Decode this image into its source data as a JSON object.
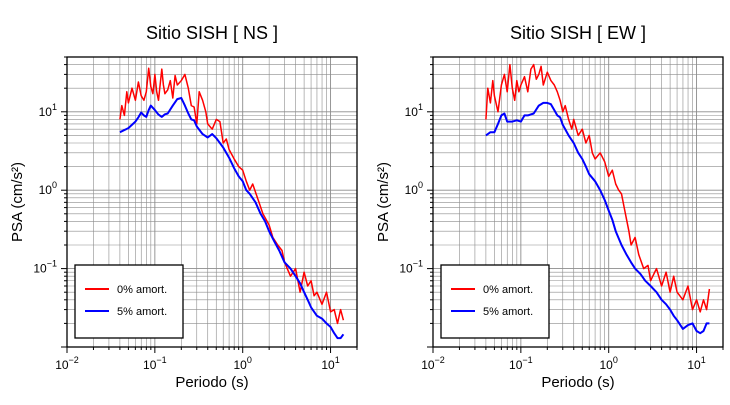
{
  "chart_data": [
    {
      "type": "line",
      "title": "Sitio SISH [ NS ]",
      "xlabel": "Periodo (s)",
      "ylabel": "PSA (cm/s²)",
      "xscale": "log",
      "yscale": "log",
      "xlim": [
        0.01,
        20
      ],
      "ylim": [
        0.01,
        50
      ],
      "xticks": [
        0.01,
        0.1,
        1,
        10
      ],
      "xtick_labels": [
        {
          "base": "10",
          "exp": "−2"
        },
        {
          "base": "10",
          "exp": "−1"
        },
        {
          "base": "10",
          "exp": "0"
        },
        {
          "base": "10",
          "exp": "1"
        }
      ],
      "yticks": [
        0.1,
        1,
        10
      ],
      "ytick_labels": [
        {
          "base": "10",
          "exp": "−1"
        },
        {
          "base": "10",
          "exp": "0"
        },
        {
          "base": "10",
          "exp": "1"
        }
      ],
      "grid": true,
      "legend_position": "bottom-left",
      "series": [
        {
          "name": "0% amort.",
          "color": "#ff0000",
          "points": [
            [
              0.04,
              8.0
            ],
            [
              0.042,
              12.0
            ],
            [
              0.045,
              9.0
            ],
            [
              0.048,
              18.0
            ],
            [
              0.05,
              13.0
            ],
            [
              0.055,
              20.0
            ],
            [
              0.06,
              14.0
            ],
            [
              0.065,
              24.0
            ],
            [
              0.07,
              16.0
            ],
            [
              0.075,
              14.0
            ],
            [
              0.08,
              18.0
            ],
            [
              0.085,
              36.0
            ],
            [
              0.09,
              21.0
            ],
            [
              0.095,
              17.0
            ],
            [
              0.1,
              30.0
            ],
            [
              0.105,
              18.0
            ],
            [
              0.11,
              14.0
            ],
            [
              0.12,
              35.0
            ],
            [
              0.125,
              22.0
            ],
            [
              0.13,
              17.0
            ],
            [
              0.14,
              19.0
            ],
            [
              0.15,
              25.0
            ],
            [
              0.16,
              15.0
            ],
            [
              0.17,
              29.0
            ],
            [
              0.18,
              22.0
            ],
            [
              0.2,
              25.0
            ],
            [
              0.22,
              30.0
            ],
            [
              0.24,
              20.0
            ],
            [
              0.26,
              12.0
            ],
            [
              0.28,
              11.5
            ],
            [
              0.3,
              7.0
            ],
            [
              0.32,
              18.0
            ],
            [
              0.35,
              14.0
            ],
            [
              0.38,
              10.0
            ],
            [
              0.4,
              7.0
            ],
            [
              0.45,
              6.0
            ],
            [
              0.5,
              8.0
            ],
            [
              0.55,
              7.5
            ],
            [
              0.6,
              4.0
            ],
            [
              0.65,
              4.5
            ],
            [
              0.7,
              3.3
            ],
            [
              0.8,
              2.5
            ],
            [
              0.9,
              2.0
            ],
            [
              1.0,
              1.8
            ],
            [
              1.1,
              1.3
            ],
            [
              1.2,
              1.0
            ],
            [
              1.3,
              1.2
            ],
            [
              1.5,
              0.75
            ],
            [
              1.7,
              0.5
            ],
            [
              2.0,
              0.36
            ],
            [
              2.2,
              0.25
            ],
            [
              2.5,
              0.2
            ],
            [
              2.8,
              0.17
            ],
            [
              3.0,
              0.12
            ],
            [
              3.5,
              0.08
            ],
            [
              4.0,
              0.1
            ],
            [
              4.5,
              0.05
            ],
            [
              5.0,
              0.09
            ],
            [
              5.5,
              0.06
            ],
            [
              6.0,
              0.07
            ],
            [
              6.5,
              0.045
            ],
            [
              7.0,
              0.05
            ],
            [
              8.0,
              0.035
            ],
            [
              9.0,
              0.05
            ],
            [
              10.0,
              0.028
            ],
            [
              11.0,
              0.03
            ],
            [
              12.0,
              0.02
            ],
            [
              13.0,
              0.03
            ],
            [
              14.0,
              0.022
            ]
          ]
        },
        {
          "name": "5% amort.",
          "color": "#0000ff",
          "points": [
            [
              0.04,
              5.5
            ],
            [
              0.05,
              6.2
            ],
            [
              0.06,
              7.5
            ],
            [
              0.065,
              8.5
            ],
            [
              0.07,
              9.8
            ],
            [
              0.075,
              9.0
            ],
            [
              0.08,
              8.6
            ],
            [
              0.085,
              10.5
            ],
            [
              0.09,
              12.0
            ],
            [
              0.1,
              10.5
            ],
            [
              0.11,
              9.2
            ],
            [
              0.12,
              8.6
            ],
            [
              0.13,
              9.3
            ],
            [
              0.14,
              9.5
            ],
            [
              0.16,
              12.0
            ],
            [
              0.18,
              14.5
            ],
            [
              0.2,
              15.0
            ],
            [
              0.22,
              12.0
            ],
            [
              0.24,
              9.5
            ],
            [
              0.26,
              8.0
            ],
            [
              0.28,
              7.8
            ],
            [
              0.3,
              6.5
            ],
            [
              0.35,
              5.2
            ],
            [
              0.4,
              4.7
            ],
            [
              0.45,
              5.2
            ],
            [
              0.5,
              4.6
            ],
            [
              0.55,
              4.0
            ],
            [
              0.6,
              3.5
            ],
            [
              0.7,
              2.6
            ],
            [
              0.8,
              1.9
            ],
            [
              0.9,
              1.5
            ],
            [
              1.0,
              1.3
            ],
            [
              1.1,
              1.0
            ],
            [
              1.2,
              0.9
            ],
            [
              1.4,
              0.7
            ],
            [
              1.6,
              0.5
            ],
            [
              1.8,
              0.4
            ],
            [
              2.0,
              0.3
            ],
            [
              2.3,
              0.22
            ],
            [
              2.6,
              0.17
            ],
            [
              3.0,
              0.12
            ],
            [
              3.5,
              0.1
            ],
            [
              4.0,
              0.08
            ],
            [
              4.5,
              0.065
            ],
            [
              5.0,
              0.05
            ],
            [
              5.5,
              0.04
            ],
            [
              6.0,
              0.032
            ],
            [
              7.0,
              0.025
            ],
            [
              8.0,
              0.023
            ],
            [
              9.0,
              0.02
            ],
            [
              10.0,
              0.018
            ],
            [
              11.0,
              0.015
            ],
            [
              12.0,
              0.013
            ],
            [
              13.0,
              0.013
            ],
            [
              14.0,
              0.0145
            ]
          ]
        }
      ]
    },
    {
      "type": "line",
      "title": "Sitio SISH [ EW ]",
      "xlabel": "Periodo (s)",
      "ylabel": "PSA (cm/s²)",
      "xscale": "log",
      "yscale": "log",
      "xlim": [
        0.01,
        20
      ],
      "ylim": [
        0.01,
        50
      ],
      "xticks": [
        0.01,
        0.1,
        1,
        10
      ],
      "xtick_labels": [
        {
          "base": "10",
          "exp": "−2"
        },
        {
          "base": "10",
          "exp": "−1"
        },
        {
          "base": "10",
          "exp": "0"
        },
        {
          "base": "10",
          "exp": "1"
        }
      ],
      "yticks": [
        0.1,
        1,
        10
      ],
      "ytick_labels": [
        {
          "base": "10",
          "exp": "−1"
        },
        {
          "base": "10",
          "exp": "0"
        },
        {
          "base": "10",
          "exp": "1"
        }
      ],
      "grid": true,
      "legend_position": "bottom-left",
      "series": [
        {
          "name": "0% amort.",
          "color": "#ff0000",
          "points": [
            [
              0.04,
              8.0
            ],
            [
              0.042,
              20.0
            ],
            [
              0.045,
              13.0
            ],
            [
              0.048,
              25.0
            ],
            [
              0.05,
              16.0
            ],
            [
              0.055,
              10.0
            ],
            [
              0.06,
              22.0
            ],
            [
              0.065,
              30.0
            ],
            [
              0.07,
              18.0
            ],
            [
              0.075,
              40.0
            ],
            [
              0.08,
              20.0
            ],
            [
              0.085,
              14.0
            ],
            [
              0.09,
              25.0
            ],
            [
              0.095,
              18.0
            ],
            [
              0.1,
              22.0
            ],
            [
              0.11,
              28.0
            ],
            [
              0.12,
              18.0
            ],
            [
              0.13,
              35.0
            ],
            [
              0.14,
              40.0
            ],
            [
              0.15,
              26.0
            ],
            [
              0.16,
              30.0
            ],
            [
              0.17,
              38.0
            ],
            [
              0.18,
              22.0
            ],
            [
              0.2,
              32.0
            ],
            [
              0.22,
              25.0
            ],
            [
              0.24,
              22.0
            ],
            [
              0.26,
              18.0
            ],
            [
              0.28,
              14.0
            ],
            [
              0.3,
              10.0
            ],
            [
              0.32,
              12.0
            ],
            [
              0.35,
              8.0
            ],
            [
              0.38,
              6.0
            ],
            [
              0.4,
              8.0
            ],
            [
              0.45,
              5.0
            ],
            [
              0.5,
              6.0
            ],
            [
              0.55,
              4.0
            ],
            [
              0.6,
              5.0
            ],
            [
              0.65,
              3.0
            ],
            [
              0.7,
              2.5
            ],
            [
              0.8,
              3.0
            ],
            [
              0.9,
              2.3
            ],
            [
              1.0,
              1.5
            ],
            [
              1.1,
              1.8
            ],
            [
              1.2,
              1.2
            ],
            [
              1.3,
              1.0
            ],
            [
              1.4,
              0.9
            ],
            [
              1.5,
              0.6
            ],
            [
              1.6,
              0.42
            ],
            [
              1.7,
              0.3
            ],
            [
              1.8,
              0.2
            ],
            [
              2.0,
              0.25
            ],
            [
              2.2,
              0.15
            ],
            [
              2.5,
              0.1
            ],
            [
              2.8,
              0.11
            ],
            [
              3.0,
              0.07
            ],
            [
              3.5,
              0.1
            ],
            [
              4.0,
              0.06
            ],
            [
              4.5,
              0.09
            ],
            [
              5.0,
              0.05
            ],
            [
              5.5,
              0.08
            ],
            [
              6.0,
              0.05
            ],
            [
              7.0,
              0.04
            ],
            [
              8.0,
              0.06
            ],
            [
              9.0,
              0.03
            ],
            [
              10.0,
              0.04
            ],
            [
              11.0,
              0.028
            ],
            [
              12.0,
              0.04
            ],
            [
              13.0,
              0.03
            ],
            [
              14.0,
              0.055
            ]
          ]
        },
        {
          "name": "5% amort.",
          "color": "#0000ff",
          "points": [
            [
              0.04,
              5.0
            ],
            [
              0.045,
              5.5
            ],
            [
              0.05,
              5.5
            ],
            [
              0.055,
              7.0
            ],
            [
              0.06,
              9.0
            ],
            [
              0.065,
              9.5
            ],
            [
              0.07,
              7.5
            ],
            [
              0.08,
              7.5
            ],
            [
              0.09,
              7.8
            ],
            [
              0.1,
              7.5
            ],
            [
              0.11,
              9.0
            ],
            [
              0.12,
              9.0
            ],
            [
              0.14,
              9.5
            ],
            [
              0.16,
              12.0
            ],
            [
              0.18,
              13.0
            ],
            [
              0.2,
              13.0
            ],
            [
              0.22,
              12.5
            ],
            [
              0.24,
              10.5
            ],
            [
              0.26,
              9.0
            ],
            [
              0.28,
              8.5
            ],
            [
              0.3,
              6.8
            ],
            [
              0.35,
              5.0
            ],
            [
              0.4,
              4.0
            ],
            [
              0.45,
              3.0
            ],
            [
              0.5,
              2.5
            ],
            [
              0.55,
              2.0
            ],
            [
              0.6,
              1.6
            ],
            [
              0.7,
              1.3
            ],
            [
              0.8,
              1.0
            ],
            [
              0.9,
              0.75
            ],
            [
              1.0,
              0.55
            ],
            [
              1.1,
              0.42
            ],
            [
              1.2,
              0.3
            ],
            [
              1.4,
              0.2
            ],
            [
              1.6,
              0.15
            ],
            [
              1.8,
              0.12
            ],
            [
              2.0,
              0.1
            ],
            [
              2.3,
              0.085
            ],
            [
              2.6,
              0.07
            ],
            [
              3.0,
              0.06
            ],
            [
              3.5,
              0.05
            ],
            [
              4.0,
              0.04
            ],
            [
              4.5,
              0.035
            ],
            [
              5.0,
              0.03
            ],
            [
              5.5,
              0.025
            ],
            [
              6.0,
              0.022
            ],
            [
              7.0,
              0.017
            ],
            [
              8.0,
              0.019
            ],
            [
              9.0,
              0.02
            ],
            [
              10.0,
              0.016
            ],
            [
              11.0,
              0.015
            ],
            [
              12.0,
              0.016
            ],
            [
              13.0,
              0.02
            ],
            [
              14.0,
              0.02
            ]
          ]
        }
      ]
    }
  ]
}
